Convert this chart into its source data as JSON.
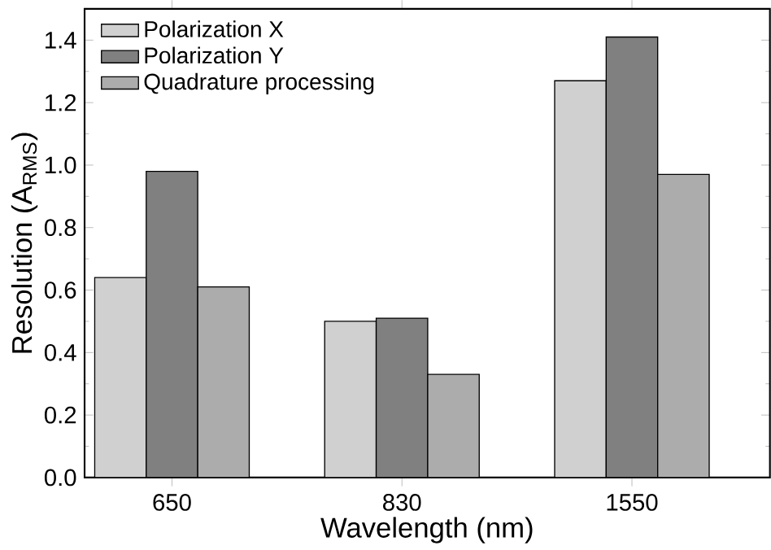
{
  "chart_data": {
    "type": "bar",
    "xlabel": "Wavelength (nm)",
    "ylabel": "Resolution (A$_{RMS}$)",
    "categories": [
      "650",
      "830",
      "1550"
    ],
    "series": [
      {
        "name": "Polarization X",
        "color": "#d0d0d0",
        "values": [
          0.64,
          0.5,
          1.27
        ]
      },
      {
        "name": "Polarization Y",
        "color": "#808080",
        "values": [
          0.98,
          0.51,
          1.41
        ]
      },
      {
        "name": "Quadrature processing",
        "color": "#acacac",
        "values": [
          0.61,
          0.33,
          0.97
        ]
      }
    ],
    "ylim": [
      0,
      1.5
    ],
    "yticks": [
      {
        "value": 0,
        "label": "0.0"
      },
      {
        "value": 0.2,
        "label": "0.2"
      },
      {
        "value": 0.4,
        "label": "0.4"
      },
      {
        "value": 0.6,
        "label": "0.6"
      },
      {
        "value": 0.8,
        "label": "0.8"
      },
      {
        "value": 1.0,
        "label": "1.0"
      },
      {
        "value": 1.2,
        "label": "1.2"
      },
      {
        "value": 1.4,
        "label": "1.4"
      }
    ],
    "legend": "top left"
  }
}
